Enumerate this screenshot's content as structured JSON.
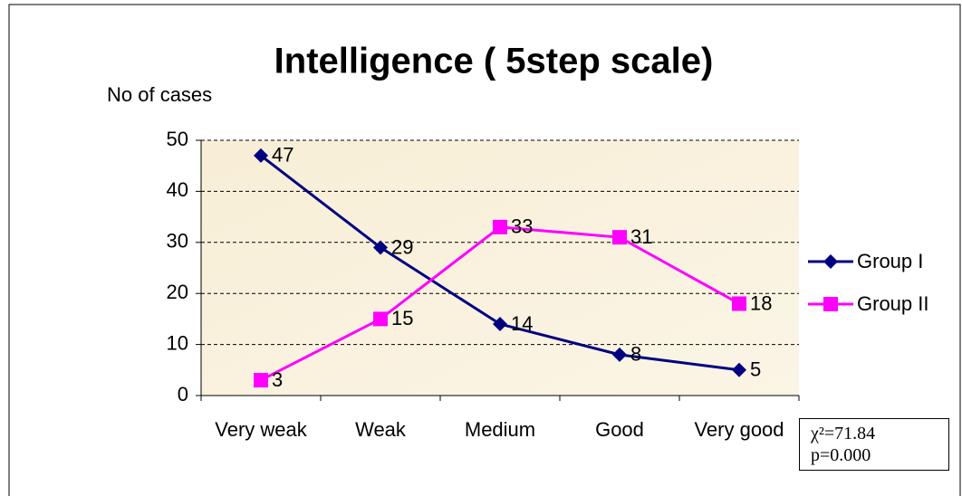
{
  "chart_data": {
    "type": "line",
    "title": "Intelligence ( 5step scale)",
    "y_label": "No of cases",
    "categories": [
      "Very weak",
      "Weak",
      "Medium",
      "Good",
      "Very good"
    ],
    "series": [
      {
        "name": "Group I",
        "color": "#000080",
        "marker": "diamond",
        "values": [
          47,
          29,
          14,
          8,
          5
        ]
      },
      {
        "name": "Group II",
        "color": "#ff00ff",
        "marker": "square",
        "values": [
          3,
          15,
          33,
          31,
          18
        ]
      }
    ],
    "ylim": [
      0,
      50
    ],
    "yticks": [
      0,
      10,
      20,
      30,
      40,
      50
    ],
    "grid": true,
    "annotations": [
      "χ²=71.84",
      "p=0.000"
    ]
  }
}
